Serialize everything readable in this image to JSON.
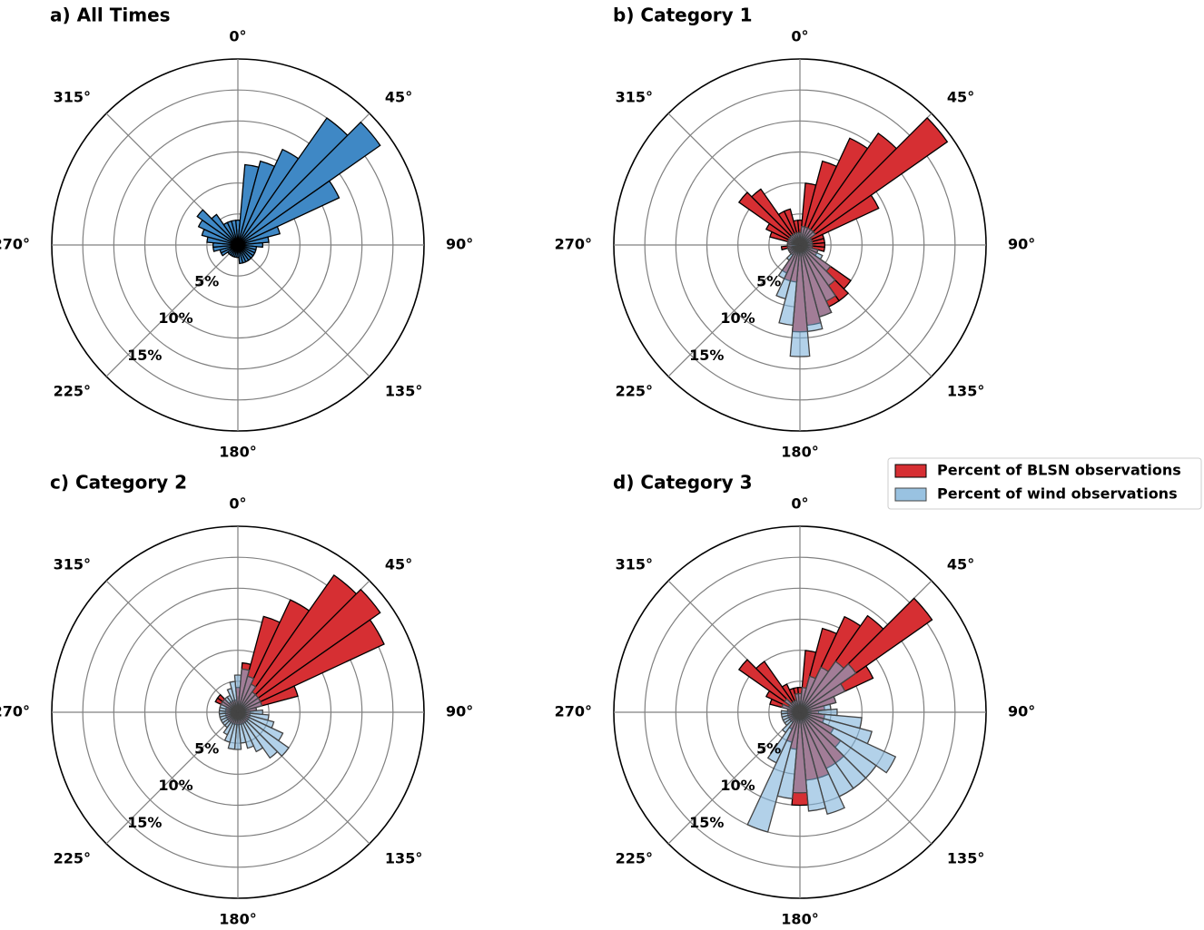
{
  "chart_data": [
    {
      "type": "polar_bar",
      "title": "a) All Times",
      "x": [
        0,
        10,
        20,
        30,
        40,
        50,
        60,
        70,
        80,
        90,
        100,
        110,
        120,
        130,
        140,
        150,
        160,
        170,
        180,
        190,
        200,
        210,
        220,
        230,
        240,
        250,
        260,
        270,
        280,
        290,
        300,
        310,
        320,
        330,
        340,
        350
      ],
      "values": [
        2,
        6.5,
        7,
        8.5,
        12.5,
        14,
        9,
        3.5,
        2.5,
        2,
        1.5,
        1.5,
        1.5,
        1.5,
        1.5,
        1.5,
        1.5,
        1.5,
        1,
        1,
        1,
        1,
        1,
        1,
        1.5,
        1.5,
        2,
        2,
        2.5,
        3,
        3.5,
        4,
        3,
        2,
        2,
        2
      ],
      "color": "#3f88c5",
      "ylim": [
        0,
        15
      ],
      "yticks": [
        {
          "value": 5,
          "label": "5%"
        },
        {
          "value": 10,
          "label": "10%"
        },
        {
          "value": 15,
          "label": "15%"
        }
      ],
      "minor_yticks": [
        2.5,
        7.5,
        12.5
      ],
      "xticks": [
        {
          "value": 0,
          "label": "0°"
        },
        {
          "value": 45,
          "label": "45°"
        },
        {
          "value": 90,
          "label": "90°"
        },
        {
          "value": 135,
          "label": "135°"
        },
        {
          "value": 180,
          "label": "180°"
        },
        {
          "value": 225,
          "label": "225°"
        },
        {
          "value": 270,
          "label": "270°"
        },
        {
          "value": 315,
          "label": "315°"
        }
      ]
    },
    {
      "type": "polar_bar",
      "title": "b) Category 1",
      "x": [
        0,
        10,
        20,
        30,
        40,
        50,
        60,
        70,
        80,
        90,
        100,
        110,
        120,
        130,
        140,
        150,
        160,
        170,
        180,
        190,
        200,
        210,
        220,
        230,
        240,
        250,
        260,
        270,
        280,
        290,
        300,
        310,
        320,
        330,
        340,
        350
      ],
      "series": [
        {
          "color": "#d62f33",
          "values": [
            2,
            5,
            7,
            9.5,
            11,
            14.5,
            7,
            2,
            2,
            2,
            2,
            1.5,
            1.5,
            5,
            5.5,
            5.5,
            6,
            6.5,
            7,
            3,
            3,
            2.5,
            1,
            1,
            1,
            1,
            1.5,
            1,
            1,
            2.5,
            3,
            6,
            5.5,
            3,
            3,
            2
          ]
        },
        {
          "color": "#7fb3da",
          "values": [
            1,
            1.5,
            1.5,
            1.5,
            1.5,
            1.5,
            1,
            1,
            1,
            1,
            1,
            1.5,
            2,
            3,
            4,
            5,
            6,
            7,
            9,
            6.5,
            4.5,
            3,
            1.5,
            1,
            1,
            1,
            1,
            1,
            1,
            1,
            1,
            1,
            1,
            1,
            1,
            1
          ]
        }
      ],
      "ylim": [
        0,
        15
      ],
      "yticks": [
        {
          "value": 5,
          "label": "5%"
        },
        {
          "value": 10,
          "label": "10%"
        },
        {
          "value": 15,
          "label": "15%"
        }
      ],
      "minor_yticks": [
        2.5,
        7.5,
        12.5
      ],
      "xticks": [
        {
          "value": 0,
          "label": "0°"
        },
        {
          "value": 45,
          "label": "45°"
        },
        {
          "value": 90,
          "label": "90°"
        },
        {
          "value": 135,
          "label": "135°"
        },
        {
          "value": 180,
          "label": "180°"
        },
        {
          "value": 225,
          "label": "225°"
        },
        {
          "value": 270,
          "label": "270°"
        },
        {
          "value": 315,
          "label": "315°"
        }
      ]
    },
    {
      "type": "polar_bar",
      "title": "c) Category 2",
      "x": [
        0,
        10,
        20,
        30,
        40,
        50,
        60,
        70,
        80,
        90,
        100,
        110,
        120,
        130,
        140,
        150,
        160,
        170,
        180,
        190,
        200,
        210,
        220,
        230,
        240,
        250,
        260,
        270,
        280,
        290,
        300,
        310,
        320,
        330,
        340,
        350
      ],
      "series": [
        {
          "color": "#d62f33",
          "values": [
            2,
            4,
            8,
            10,
            13.5,
            14,
            13,
            5,
            1.5,
            1,
            1,
            1,
            1,
            1,
            1,
            1,
            1,
            1,
            1,
            1,
            1,
            1,
            1,
            1,
            1,
            1,
            1,
            1,
            1,
            1,
            2,
            2,
            1,
            1,
            1,
            1
          ]
        },
        {
          "color": "#7fb3da",
          "values": [
            3,
            3.5,
            3,
            2.5,
            2,
            2,
            2,
            2,
            1.5,
            2,
            2.5,
            3,
            4,
            5,
            4.5,
            3.5,
            3,
            2.5,
            3,
            3,
            2.5,
            2,
            1.5,
            1.5,
            1.5,
            1.5,
            1.5,
            1.5,
            1.5,
            1.5,
            1.5,
            1.5,
            1.5,
            1.5,
            2,
            2.5
          ]
        }
      ],
      "ylim": [
        0,
        15
      ],
      "yticks": [
        {
          "value": 5,
          "label": "5%"
        },
        {
          "value": 10,
          "label": "10%"
        },
        {
          "value": 15,
          "label": "15%"
        }
      ],
      "minor_yticks": [
        2.5,
        7.5,
        12.5
      ],
      "xticks": [
        {
          "value": 0,
          "label": "0°"
        },
        {
          "value": 45,
          "label": "45°"
        },
        {
          "value": 90,
          "label": "90°"
        },
        {
          "value": 135,
          "label": "135°"
        },
        {
          "value": 180,
          "label": "180°"
        },
        {
          "value": 225,
          "label": "225°"
        },
        {
          "value": 270,
          "label": "270°"
        },
        {
          "value": 315,
          "label": "315°"
        }
      ]
    },
    {
      "type": "polar_bar",
      "title": "d) Category 3",
      "x": [
        0,
        10,
        20,
        30,
        40,
        50,
        60,
        70,
        80,
        90,
        100,
        110,
        120,
        130,
        140,
        150,
        160,
        170,
        180,
        190,
        200,
        210,
        220,
        230,
        240,
        250,
        260,
        270,
        280,
        290,
        300,
        310,
        320,
        330,
        340,
        350
      ],
      "series": [
        {
          "name": "Percent of BLSN observations",
          "color": "#d62f33",
          "values": [
            2,
            5,
            7,
            8.5,
            9.5,
            13,
            6.5,
            3,
            2,
            1.5,
            2,
            2,
            3,
            4,
            5,
            5,
            5.5,
            5.5,
            7.5,
            3,
            2.5,
            1.5,
            1,
            1,
            1,
            1,
            1,
            1,
            1,
            2.5,
            3,
            6,
            5,
            2.5,
            2,
            2
          ]
        },
        {
          "name": "Percent of wind observations",
          "color": "#7fb3da",
          "values": [
            1.5,
            2,
            3,
            4,
            5,
            5.5,
            4,
            3,
            2.5,
            3,
            5,
            6,
            8.5,
            7.5,
            7.5,
            7.5,
            8.5,
            8,
            6.5,
            7,
            10,
            4.5,
            2,
            1.5,
            1.5,
            1.5,
            1.5,
            1.5,
            1,
            1.5,
            1,
            1.5,
            1,
            1,
            1,
            1.5
          ]
        }
      ],
      "ylim": [
        0,
        15
      ],
      "yticks": [
        {
          "value": 5,
          "label": "5%"
        },
        {
          "value": 10,
          "label": "10%"
        },
        {
          "value": 15,
          "label": "15%"
        }
      ],
      "minor_yticks": [
        2.5,
        7.5,
        12.5
      ],
      "xticks": [
        {
          "value": 0,
          "label": "0°"
        },
        {
          "value": 45,
          "label": "45°"
        },
        {
          "value": 90,
          "label": "90°"
        },
        {
          "value": 135,
          "label": "135°"
        },
        {
          "value": 180,
          "label": "180°"
        },
        {
          "value": 225,
          "label": "225°"
        },
        {
          "value": 270,
          "label": "270°"
        },
        {
          "value": 315,
          "label": "315°"
        }
      ]
    }
  ]
}
